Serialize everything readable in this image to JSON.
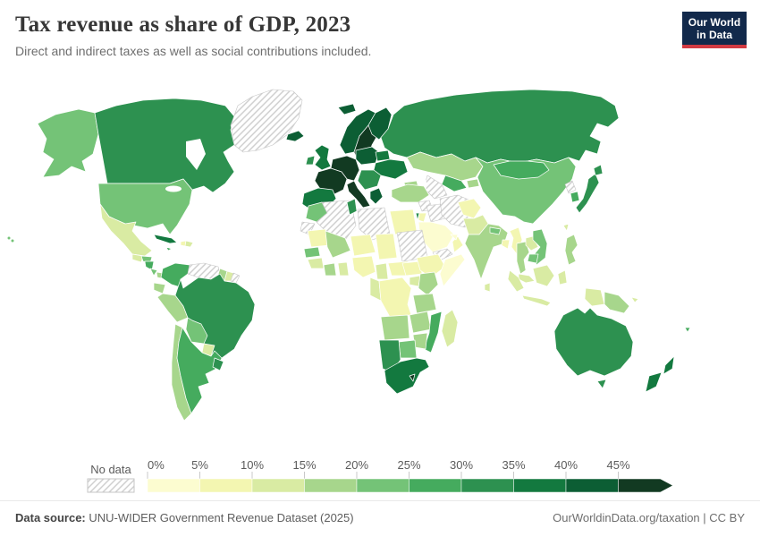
{
  "header": {
    "title": "Tax revenue as share of GDP, 2023",
    "subtitle": "Direct and indirect taxes as well as social contributions included.",
    "logo": {
      "line1": "Our World",
      "line2": "in Data",
      "bg": "#12294b",
      "accent": "#d23a42"
    }
  },
  "legend": {
    "no_data_label": "No data",
    "ticks": [
      "0%",
      "5%",
      "10%",
      "15%",
      "20%",
      "25%",
      "30%",
      "35%",
      "40%",
      "45%"
    ]
  },
  "footer": {
    "source_label": "Data source:",
    "source_text": " UNU-WIDER Government Revenue Dataset (2025)",
    "right_text": "OurWorldinData.org/taxation | CC BY"
  },
  "chart_data": {
    "type": "choropleth",
    "title": "Tax revenue as share of GDP, 2023",
    "subtitle": "Direct and indirect taxes as well as social contributions included.",
    "unit": "% of GDP",
    "year": 2023,
    "legend_position": "bottom",
    "color_scale": {
      "type": "threshold",
      "bin_starts": [
        0,
        5,
        10,
        15,
        20,
        25,
        30,
        35,
        40,
        45
      ],
      "bin_labels": [
        "0%",
        "5%",
        "10%",
        "15%",
        "20%",
        "25%",
        "30%",
        "35%",
        "40%",
        "45%"
      ],
      "colors": [
        "#fcfcd0",
        "#f3f6b1",
        "#d9eba3",
        "#a7d68c",
        "#74c377",
        "#45ab5e",
        "#2d9150",
        "#13793f",
        "#0c5e34",
        "#123a22"
      ],
      "no_data": {
        "label": "No data",
        "style": "hatched",
        "hatch_color": "#c9c9c9"
      }
    },
    "regions": {
      "greenland": {
        "name": "Greenland",
        "value": null
      },
      "iceland": {
        "name": "Iceland",
        "value": 42
      },
      "canada": {
        "name": "Canada",
        "value": 33
      },
      "united_states": {
        "name": "United States",
        "value": 22
      },
      "hawaii": {
        "name": "United States (Hawaii)",
        "value": 22
      },
      "mexico": {
        "name": "Mexico",
        "value": 12
      },
      "guatemala": {
        "name": "Guatemala",
        "value": 13
      },
      "honduras": {
        "name": "Honduras",
        "value": 21
      },
      "nicaragua": {
        "name": "Nicaragua",
        "value": 26
      },
      "costa_rica": {
        "name": "Costa Rica",
        "value": 23
      },
      "panama": {
        "name": "Panama",
        "value": 17
      },
      "cuba": {
        "name": "Cuba",
        "value": 37
      },
      "jamaica": {
        "name": "Jamaica",
        "value": 27
      },
      "haiti": {
        "name": "Haiti",
        "value": 6
      },
      "dominican_republic": {
        "name": "Dominican Republic",
        "value": 13
      },
      "trinidad_and_tobago": {
        "name": "Trinidad and Tobago",
        "value": 26
      },
      "colombia": {
        "name": "Colombia",
        "value": 27
      },
      "venezuela": {
        "name": "Venezuela",
        "value": null
      },
      "guyana": {
        "name": "Guyana",
        "value": 16
      },
      "suriname": {
        "name": "Suriname",
        "value": 12
      },
      "french_guiana": {
        "name": "French Guiana",
        "value": null
      },
      "ecuador": {
        "name": "Ecuador",
        "value": 19
      },
      "peru": {
        "name": "Peru",
        "value": 17
      },
      "brazil": {
        "name": "Brazil",
        "value": 32
      },
      "bolivia": {
        "name": "Bolivia",
        "value": 23
      },
      "paraguay": {
        "name": "Paraguay",
        "value": 14
      },
      "chile": {
        "name": "Chile",
        "value": 19
      },
      "argentina": {
        "name": "Argentina",
        "value": 28
      },
      "uruguay": {
        "name": "Uruguay",
        "value": 31
      },
      "united_kingdom": {
        "name": "United Kingdom",
        "value": 36
      },
      "ireland": {
        "name": "Ireland",
        "value": 34
      },
      "norway": {
        "name": "Norway",
        "value": 44
      },
      "svalbard": {
        "name": "Svalbard (Norway)",
        "value": 44
      },
      "sweden": {
        "name": "Sweden",
        "value": 46
      },
      "finland": {
        "name": "Finland",
        "value": 43
      },
      "denmark": {
        "name": "Denmark",
        "value": 47
      },
      "iberia": {
        "name": "Spain and Portugal",
        "value": 37
      },
      "france": {
        "name": "France",
        "value": 46
      },
      "central_europe": {
        "name": "Germany and Central Europe",
        "value": 45
      },
      "italy": {
        "name": "Italy",
        "value": 45
      },
      "poland_baltics": {
        "name": "Poland and Baltics",
        "value": 41
      },
      "belarus": {
        "name": "Belarus",
        "value": 36
      },
      "ukraine": {
        "name": "Ukraine",
        "value": 36
      },
      "balkans": {
        "name": "Balkans",
        "value": 33
      },
      "greece": {
        "name": "Greece",
        "value": 41
      },
      "russia": {
        "name": "Russia",
        "value": 31
      },
      "kazakhstan": {
        "name": "Kazakhstan",
        "value": 17
      },
      "uzbekistan": {
        "name": "Uzbekistan",
        "value": 26
      },
      "turkmenistan": {
        "name": "Turkmenistan",
        "value": null
      },
      "kyrgyzstan": {
        "name": "Kyrgyzstan and Tajikistan",
        "value": 16
      },
      "azerbaijan": {
        "name": "Caucasus",
        "value": 17
      },
      "turkey": {
        "name": "Turkey",
        "value": 18
      },
      "syria": {
        "name": "Syria",
        "value": null
      },
      "israel": {
        "name": "Israel",
        "value": 33
      },
      "jordan": {
        "name": "Jordan",
        "value": 9
      },
      "iraq": {
        "name": "Iraq",
        "value": null
      },
      "iran": {
        "name": "Iran",
        "value": null
      },
      "saudi_arabia": {
        "name": "Saudi Arabia",
        "value": 4
      },
      "yemen": {
        "name": "Yemen",
        "value": null
      },
      "oman": {
        "name": "Oman",
        "value": 8
      },
      "uae": {
        "name": "United Arab Emirates",
        "value": 1
      },
      "afghanistan": {
        "name": "Afghanistan",
        "value": 8
      },
      "pakistan": {
        "name": "Pakistan",
        "value": 12
      },
      "india": {
        "name": "India",
        "value": 17
      },
      "nepal": {
        "name": "Nepal",
        "value": 22
      },
      "bangladesh": {
        "name": "Bangladesh",
        "value": 8
      },
      "sri_lanka": {
        "name": "Sri Lanka",
        "value": 12
      },
      "myanmar": {
        "name": "Myanmar",
        "value": 7
      },
      "thailand": {
        "name": "Thailand",
        "value": 16
      },
      "laos": {
        "name": "Laos",
        "value": 12
      },
      "vietnam": {
        "name": "Vietnam",
        "value": 22
      },
      "cambodia": {
        "name": "Cambodia",
        "value": 20
      },
      "malaysia": {
        "name": "Malaysia",
        "value": 12
      },
      "indonesia": {
        "name": "Indonesia",
        "value": 11
      },
      "philippines": {
        "name": "Philippines",
        "value": 18
      },
      "taiwan": {
        "name": "Taiwan",
        "value": 12
      },
      "china": {
        "name": "China",
        "value": 21
      },
      "mongolia": {
        "name": "Mongolia",
        "value": 26
      },
      "north_korea": {
        "name": "North Korea",
        "value": null
      },
      "south_korea": {
        "name": "South Korea",
        "value": 27
      },
      "japan": {
        "name": "Japan",
        "value": 33
      },
      "papua_new_guinea": {
        "name": "Papua New Guinea",
        "value": 15
      },
      "solomon_islands": {
        "name": "Solomon Islands",
        "value": 13
      },
      "fiji": {
        "name": "Fiji",
        "value": 27
      },
      "australia": {
        "name": "Australia",
        "value": 30
      },
      "new_zealand": {
        "name": "New Zealand",
        "value": 36
      },
      "morocco": {
        "name": "Morocco",
        "value": 21
      },
      "western_sahara": {
        "name": "Western Sahara",
        "value": null
      },
      "algeria": {
        "name": "Algeria",
        "value": null
      },
      "tunisia": {
        "name": "Tunisia",
        "value": 32
      },
      "libya": {
        "name": "Libya",
        "value": null
      },
      "egypt": {
        "name": "Egypt",
        "value": 8
      },
      "mauritania": {
        "name": "Mauritania",
        "value": 9
      },
      "mali": {
        "name": "Mali",
        "value": 16
      },
      "niger": {
        "name": "Niger",
        "value": 8
      },
      "chad": {
        "name": "Chad",
        "value": 8
      },
      "sudan": {
        "name": "Sudan",
        "value": null
      },
      "senegal": {
        "name": "Senegal",
        "value": 21
      },
      "guinea": {
        "name": "Guinea",
        "value": 13
      },
      "ivory_coast": {
        "name": "Cote d'Ivoire",
        "value": 16
      },
      "ghana": {
        "name": "Ghana",
        "value": 13
      },
      "nigeria": {
        "name": "Nigeria",
        "value": 6
      },
      "cameroon": {
        "name": "Cameroon",
        "value": 13
      },
      "central_african_republic": {
        "name": "Central African Republic",
        "value": 7
      },
      "south_sudan": {
        "name": "South Sudan",
        "value": 8
      },
      "ethiopia": {
        "name": "Ethiopia",
        "value": 7
      },
      "somalia": {
        "name": "Somalia",
        "value": 3
      },
      "uganda": {
        "name": "Uganda",
        "value": 13
      },
      "kenya": {
        "name": "Kenya",
        "value": 16
      },
      "drc": {
        "name": "Democratic Republic of Congo",
        "value": 8
      },
      "gabon_congo": {
        "name": "Gabon and Congo",
        "value": 13
      },
      "tanzania": {
        "name": "Tanzania",
        "value": 16
      },
      "angola": {
        "name": "Angola",
        "value": 17
      },
      "zambia": {
        "name": "Zambia",
        "value": 17
      },
      "mozambique": {
        "name": "Mozambique",
        "value": 26
      },
      "zimbabwe": {
        "name": "Zimbabwe",
        "value": 17
      },
      "botswana": {
        "name": "Botswana",
        "value": 23
      },
      "namibia": {
        "name": "Namibia",
        "value": 31
      },
      "south_africa": {
        "name": "South Africa",
        "value": 36
      },
      "lesotho": {
        "name": "Lesotho",
        "value": 45
      },
      "madagascar": {
        "name": "Madagascar",
        "value": 11
      }
    }
  }
}
